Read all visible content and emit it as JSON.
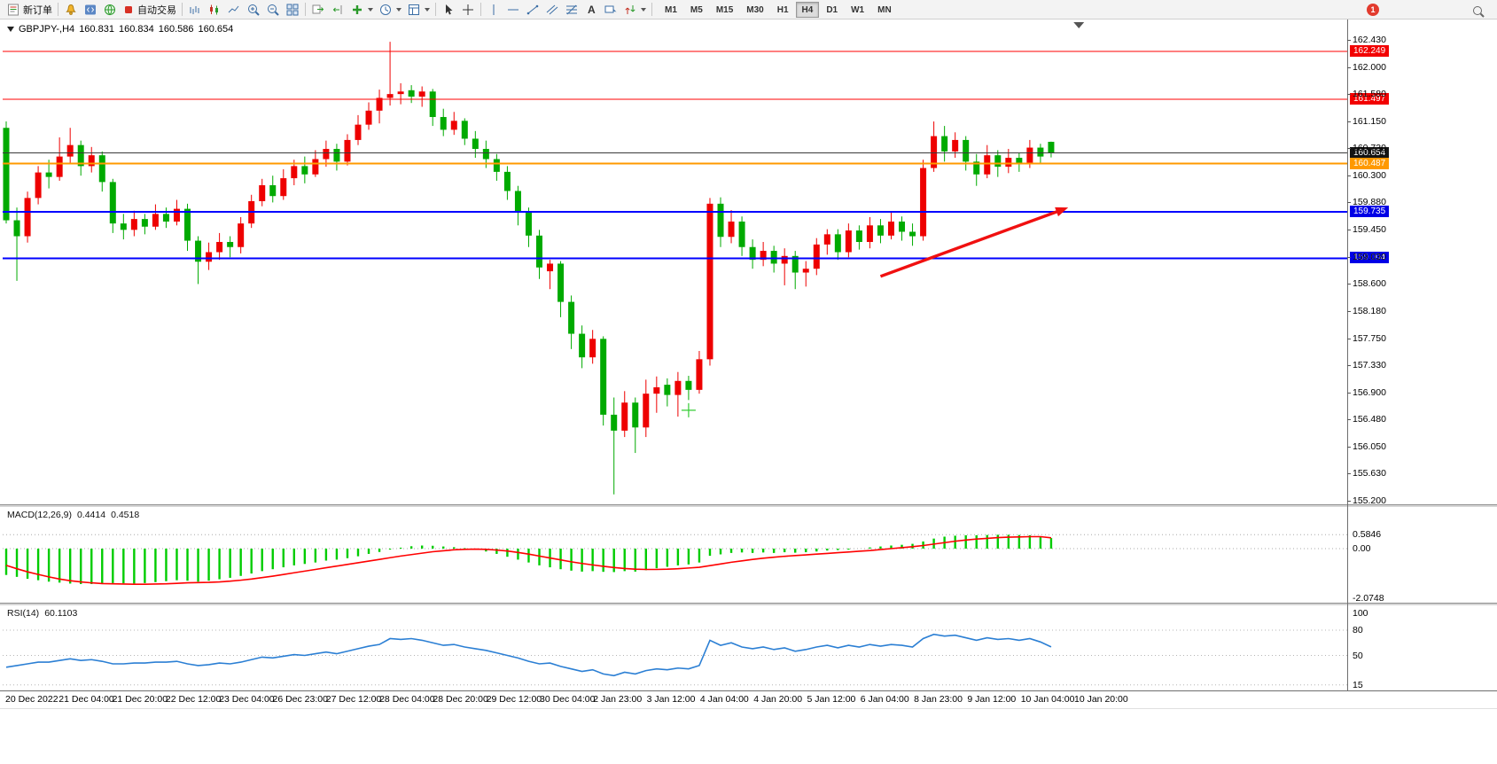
{
  "toolbar": {
    "new_order_label": "新订单",
    "autotrading_label": "自动交易",
    "timeframes": [
      "M1",
      "M5",
      "M15",
      "M30",
      "H1",
      "H4",
      "D1",
      "W1",
      "MN"
    ],
    "active_timeframe": "H4",
    "notification_count": "1"
  },
  "chart_data": {
    "type": "candlestick",
    "title": {
      "symbol_period": "GBPJPY-,H4",
      "open": "160.831",
      "high": "160.834",
      "low": "160.586",
      "close": "160.654"
    },
    "price_axis": {
      "top_price": 162.43,
      "bottom_price": 155.2,
      "labels": [
        "162.430",
        "162.000",
        "161.580",
        "161.150",
        "160.730",
        "160.300",
        "159.880",
        "159.450",
        "159.030",
        "158.600",
        "158.180",
        "157.750",
        "157.330",
        "156.900",
        "156.480",
        "156.050",
        "155.630",
        "155.200"
      ]
    },
    "time_axis": {
      "labels": [
        "20 Dec 2022",
        "21 Dec 04:00",
        "21 Dec 20:00",
        "22 Dec 12:00",
        "23 Dec 04:00",
        "26 Dec 23:00",
        "27 Dec 12:00",
        "28 Dec 04:00",
        "28 Dec 20:00",
        "29 Dec 12:00",
        "30 Dec 04:00",
        "2 Jan 23:00",
        "3 Jan 12:00",
        "4 Jan 04:00",
        "4 Jan 20:00",
        "5 Jan 12:00",
        "6 Jan 04:00",
        "8 Jan 23:00",
        "9 Jan 12:00",
        "10 Jan 04:00",
        "10 Jan 20:00"
      ]
    },
    "levels": [
      {
        "label": "162.249",
        "price": 162.249,
        "color": "#FF0000",
        "badge": "#F20000",
        "width": 1
      },
      {
        "label": "161.497",
        "price": 161.497,
        "color": "#FF0000",
        "badge": "#F20000",
        "width": 1
      },
      {
        "label": "160.654",
        "price": 160.654,
        "color": "#3a3a3a",
        "badge": "#141414",
        "width": 1
      },
      {
        "label": "160.487",
        "price": 160.487,
        "color": "#FF9900",
        "badge": "#FF9900",
        "width": 2
      },
      {
        "label": "159.735",
        "price": 159.735,
        "color": "#0000FF",
        "badge": "#0000E6",
        "width": 2
      },
      {
        "label": "159.004",
        "price": 159.004,
        "color": "#0000FF",
        "badge": "#0000E6",
        "width": 2
      }
    ],
    "colors": {
      "bull": "#EE0000",
      "bear": "#00AA00",
      "macd_hist": "#00CC00",
      "macd_signal": "#FF0000",
      "rsi_line": "#2B7FD4",
      "arrow": "#F01010",
      "cross": "#33CC33"
    },
    "candles": [
      [
        161.05,
        161.15,
        159.55,
        159.6
      ],
      [
        159.6,
        159.8,
        158.65,
        159.35
      ],
      [
        159.35,
        160.05,
        159.25,
        159.95
      ],
      [
        159.95,
        160.45,
        159.85,
        160.35
      ],
      [
        160.35,
        160.55,
        160.1,
        160.28
      ],
      [
        160.28,
        160.9,
        160.22,
        160.6
      ],
      [
        160.6,
        161.05,
        160.5,
        160.78
      ],
      [
        160.78,
        160.85,
        160.3,
        160.45
      ],
      [
        160.45,
        160.75,
        160.35,
        160.62
      ],
      [
        160.62,
        160.68,
        160.05,
        160.2
      ],
      [
        160.2,
        160.25,
        159.4,
        159.55
      ],
      [
        159.55,
        159.7,
        159.3,
        159.45
      ],
      [
        159.45,
        159.75,
        159.35,
        159.62
      ],
      [
        159.62,
        159.7,
        159.38,
        159.5
      ],
      [
        159.5,
        159.85,
        159.45,
        159.7
      ],
      [
        159.7,
        159.8,
        159.48,
        159.58
      ],
      [
        159.58,
        159.92,
        159.52,
        159.78
      ],
      [
        159.78,
        159.86,
        159.12,
        159.28
      ],
      [
        159.28,
        159.35,
        158.6,
        158.95
      ],
      [
        158.95,
        159.25,
        158.82,
        159.1
      ],
      [
        159.1,
        159.4,
        158.98,
        159.26
      ],
      [
        159.26,
        159.35,
        159.02,
        159.18
      ],
      [
        159.18,
        159.65,
        159.08,
        159.55
      ],
      [
        159.55,
        160.0,
        159.48,
        159.9
      ],
      [
        159.9,
        160.25,
        159.82,
        160.15
      ],
      [
        160.15,
        160.3,
        159.88,
        159.98
      ],
      [
        159.98,
        160.4,
        159.92,
        160.26
      ],
      [
        160.26,
        160.55,
        160.15,
        160.45
      ],
      [
        160.45,
        160.6,
        160.18,
        160.32
      ],
      [
        160.32,
        160.7,
        160.28,
        160.56
      ],
      [
        160.56,
        160.85,
        160.44,
        160.72
      ],
      [
        160.72,
        160.8,
        160.38,
        160.52
      ],
      [
        160.52,
        160.95,
        160.46,
        160.86
      ],
      [
        160.86,
        161.25,
        160.78,
        161.1
      ],
      [
        161.1,
        161.45,
        161.02,
        161.32
      ],
      [
        161.32,
        161.65,
        161.12,
        161.52
      ],
      [
        161.52,
        162.4,
        161.4,
        161.58
      ],
      [
        161.58,
        161.75,
        161.42,
        161.62
      ],
      [
        161.64,
        161.72,
        161.44,
        161.54
      ],
      [
        161.54,
        161.7,
        161.38,
        161.62
      ],
      [
        161.62,
        161.66,
        161.08,
        161.22
      ],
      [
        161.22,
        161.35,
        160.92,
        161.02
      ],
      [
        161.02,
        161.3,
        160.94,
        161.16
      ],
      [
        161.16,
        161.2,
        160.78,
        160.88
      ],
      [
        160.88,
        161.0,
        160.58,
        160.72
      ],
      [
        160.72,
        160.85,
        160.42,
        160.56
      ],
      [
        160.56,
        160.64,
        160.22,
        160.36
      ],
      [
        160.36,
        160.45,
        159.92,
        160.06
      ],
      [
        160.06,
        160.14,
        159.52,
        159.72
      ],
      [
        159.72,
        159.8,
        159.18,
        159.36
      ],
      [
        159.36,
        159.45,
        158.68,
        158.86
      ],
      [
        158.8,
        158.98,
        158.52,
        158.92
      ],
      [
        158.92,
        158.96,
        158.08,
        158.32
      ],
      [
        158.32,
        158.42,
        157.58,
        157.82
      ],
      [
        157.82,
        157.95,
        157.28,
        157.45
      ],
      [
        157.45,
        157.88,
        157.35,
        157.74
      ],
      [
        157.74,
        157.78,
        156.38,
        156.55
      ],
      [
        156.55,
        156.82,
        155.3,
        156.3
      ],
      [
        156.3,
        156.92,
        156.2,
        156.74
      ],
      [
        156.74,
        156.82,
        155.95,
        156.35
      ],
      [
        156.35,
        157.1,
        156.2,
        156.88
      ],
      [
        156.88,
        157.15,
        156.58,
        156.98
      ],
      [
        157.02,
        157.12,
        156.68,
        156.86
      ],
      [
        156.86,
        157.22,
        156.52,
        157.08
      ],
      [
        157.08,
        157.16,
        156.78,
        156.94
      ],
      [
        156.94,
        157.55,
        156.88,
        157.42
      ],
      [
        157.42,
        159.95,
        157.32,
        159.86
      ],
      [
        159.86,
        159.96,
        159.18,
        159.34
      ],
      [
        159.34,
        159.76,
        159.24,
        159.58
      ],
      [
        159.58,
        159.66,
        159.04,
        159.18
      ],
      [
        159.18,
        159.3,
        158.84,
        158.98
      ],
      [
        158.98,
        159.26,
        158.88,
        159.12
      ],
      [
        159.12,
        159.2,
        158.78,
        158.92
      ],
      [
        158.92,
        159.16,
        158.58,
        159.04
      ],
      [
        159.04,
        159.12,
        158.52,
        158.78
      ],
      [
        158.78,
        158.96,
        158.56,
        158.84
      ],
      [
        158.84,
        159.32,
        158.74,
        159.22
      ],
      [
        159.22,
        159.46,
        159.06,
        159.38
      ],
      [
        159.38,
        159.46,
        158.98,
        159.1
      ],
      [
        159.1,
        159.55,
        159.02,
        159.44
      ],
      [
        159.44,
        159.52,
        159.14,
        159.26
      ],
      [
        159.26,
        159.65,
        159.16,
        159.52
      ],
      [
        159.52,
        159.62,
        159.24,
        159.36
      ],
      [
        159.36,
        159.72,
        159.3,
        159.58
      ],
      [
        159.58,
        159.66,
        159.28,
        159.42
      ],
      [
        159.42,
        159.55,
        159.2,
        159.35
      ],
      [
        159.35,
        160.55,
        159.28,
        160.42
      ],
      [
        160.42,
        161.15,
        160.36,
        160.92
      ],
      [
        160.92,
        161.08,
        160.52,
        160.68
      ],
      [
        160.68,
        160.98,
        160.58,
        160.86
      ],
      [
        160.86,
        160.92,
        160.38,
        160.52
      ],
      [
        160.52,
        160.64,
        160.14,
        160.32
      ],
      [
        160.32,
        160.78,
        160.26,
        160.62
      ],
      [
        160.62,
        160.7,
        160.28,
        160.44
      ],
      [
        160.44,
        160.72,
        160.34,
        160.58
      ],
      [
        160.58,
        160.66,
        160.36,
        160.48
      ],
      [
        160.48,
        160.86,
        160.42,
        160.74
      ],
      [
        160.74,
        160.8,
        160.5,
        160.6
      ],
      [
        160.831,
        160.834,
        160.586,
        160.654
      ]
    ],
    "macd": {
      "label": "MACD(12,26,9)",
      "value": "0.4414",
      "signal_value": "0.4518",
      "scale_labels": [
        "0.5846",
        "0.00",
        "-2.0748"
      ],
      "scale_values": [
        0.5846,
        0,
        -2.0748
      ],
      "hist": [
        -1.1,
        -1.18,
        -1.26,
        -1.32,
        -1.38,
        -1.42,
        -1.46,
        -1.48,
        -1.48,
        -1.46,
        -1.44,
        -1.45,
        -1.46,
        -1.44,
        -1.4,
        -1.36,
        -1.32,
        -1.34,
        -1.38,
        -1.34,
        -1.28,
        -1.22,
        -1.14,
        -1.04,
        -0.94,
        -0.86,
        -0.78,
        -0.7,
        -0.64,
        -0.58,
        -0.5,
        -0.46,
        -0.4,
        -0.32,
        -0.22,
        -0.14,
        -0.04,
        0.04,
        0.1,
        0.13,
        0.12,
        0.09,
        0.06,
        0.02,
        -0.04,
        -0.12,
        -0.22,
        -0.34,
        -0.46,
        -0.58,
        -0.7,
        -0.78,
        -0.86,
        -0.92,
        -0.96,
        -0.94,
        -0.97,
        -0.98,
        -0.94,
        -0.96,
        -0.9,
        -0.82,
        -0.76,
        -0.7,
        -0.66,
        -0.58,
        -0.3,
        -0.24,
        -0.18,
        -0.16,
        -0.18,
        -0.16,
        -0.18,
        -0.15,
        -0.17,
        -0.15,
        -0.12,
        -0.08,
        -0.06,
        -0.04,
        0.0,
        0.05,
        0.09,
        0.13,
        0.16,
        0.2,
        0.3,
        0.42,
        0.5,
        0.54,
        0.56,
        0.56,
        0.57,
        0.58,
        0.58,
        0.57,
        0.56,
        0.52,
        0.4414
      ],
      "signal": [
        -0.7,
        -0.84,
        -0.97,
        -1.08,
        -1.18,
        -1.27,
        -1.34,
        -1.39,
        -1.43,
        -1.46,
        -1.47,
        -1.48,
        -1.49,
        -1.49,
        -1.48,
        -1.47,
        -1.45,
        -1.43,
        -1.42,
        -1.41,
        -1.39,
        -1.36,
        -1.32,
        -1.27,
        -1.21,
        -1.15,
        -1.08,
        -1.01,
        -0.94,
        -0.87,
        -0.8,
        -0.73,
        -0.66,
        -0.59,
        -0.52,
        -0.45,
        -0.38,
        -0.31,
        -0.25,
        -0.19,
        -0.13,
        -0.09,
        -0.05,
        -0.03,
        -0.02,
        -0.03,
        -0.06,
        -0.1,
        -0.16,
        -0.23,
        -0.31,
        -0.39,
        -0.47,
        -0.55,
        -0.62,
        -0.68,
        -0.74,
        -0.79,
        -0.83,
        -0.86,
        -0.87,
        -0.87,
        -0.86,
        -0.84,
        -0.81,
        -0.78,
        -0.71,
        -0.64,
        -0.57,
        -0.51,
        -0.45,
        -0.4,
        -0.36,
        -0.32,
        -0.29,
        -0.26,
        -0.23,
        -0.2,
        -0.17,
        -0.14,
        -0.11,
        -0.08,
        -0.04,
        0.0,
        0.04,
        0.08,
        0.13,
        0.19,
        0.25,
        0.31,
        0.36,
        0.4,
        0.43,
        0.46,
        0.48,
        0.49,
        0.5,
        0.5,
        0.4518
      ]
    },
    "rsi": {
      "label": "RSI(14)",
      "value": "60.1103",
      "scale_labels": [
        "100",
        "80",
        "50",
        "15"
      ],
      "scale_values": [
        100,
        80,
        50,
        15
      ],
      "grid_levels": [
        80,
        50,
        15
      ],
      "values": [
        36,
        38,
        40,
        42,
        42,
        44,
        46,
        44,
        45,
        43,
        40,
        40,
        41,
        41,
        42,
        42,
        43,
        40,
        38,
        39,
        41,
        40,
        42,
        45,
        48,
        47,
        49,
        51,
        50,
        52,
        54,
        52,
        55,
        58,
        61,
        63,
        70,
        69,
        70,
        68,
        65,
        62,
        63,
        60,
        58,
        56,
        53,
        50,
        47,
        43,
        40,
        41,
        37,
        34,
        31,
        33,
        28,
        26,
        30,
        28,
        32,
        34,
        33,
        35,
        34,
        38,
        68,
        62,
        65,
        60,
        58,
        60,
        57,
        59,
        55,
        57,
        60,
        62,
        59,
        62,
        60,
        63,
        61,
        63,
        62,
        60,
        70,
        75,
        73,
        74,
        71,
        68,
        71,
        69,
        70,
        68,
        70,
        66,
        60.11
      ]
    },
    "annotations": {
      "arrow": {
        "from_bar": 82,
        "from_price": 158.72,
        "to_bar": 99.6,
        "to_price": 159.8
      },
      "cross": {
        "bar": 64,
        "price": 156.62
      },
      "shift_marker_bar": 100.6
    }
  }
}
